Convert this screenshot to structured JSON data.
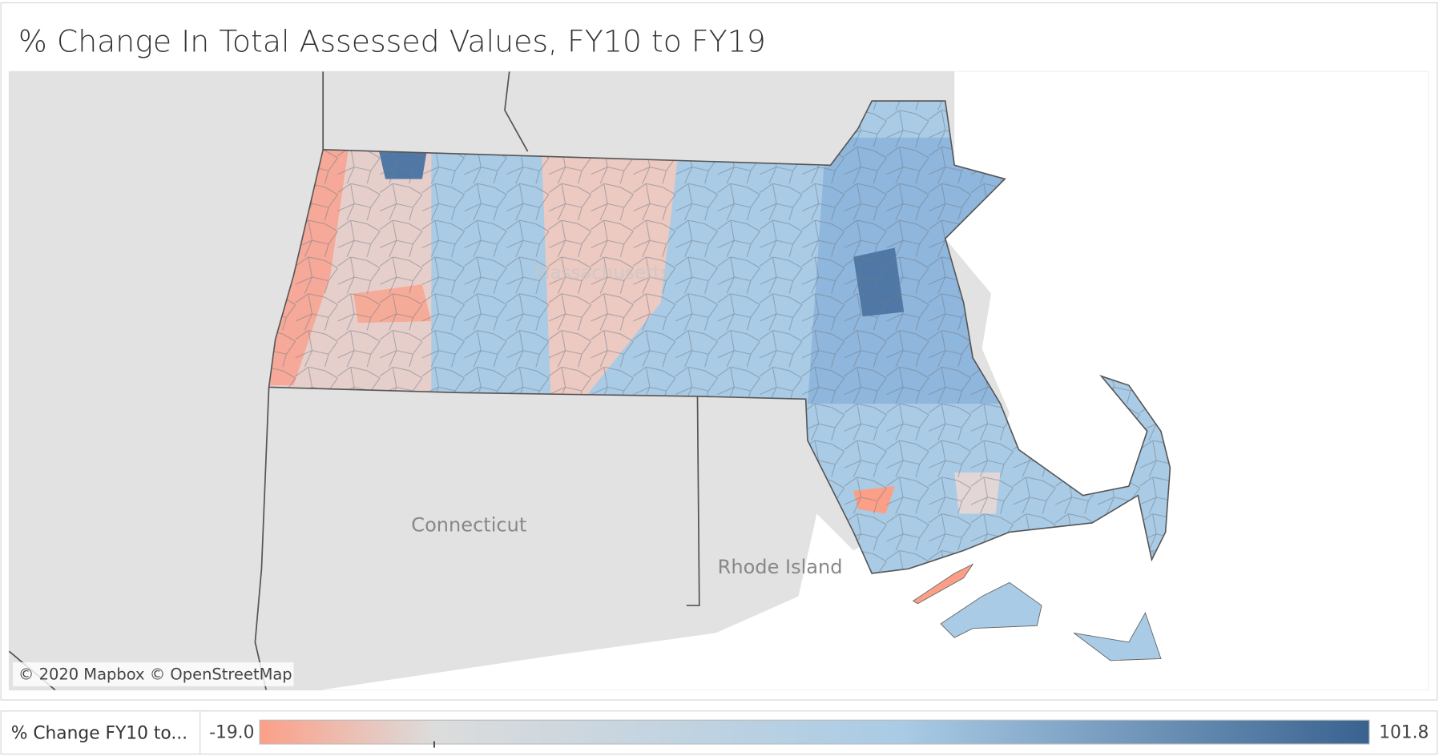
{
  "header": {
    "title": "% Change In Total Assessed Values, FY10 to FY19"
  },
  "map": {
    "labels": {
      "massachusetts": "Massachusetts",
      "connecticut": "Connecticut",
      "rhode_island": "Rhode Island"
    },
    "attribution": "© 2020 Mapbox © OpenStreetMap"
  },
  "legend": {
    "title": "% Change FY10 to...",
    "min": {
      "value": -19,
      "label": "-19.0"
    },
    "max": {
      "value": 101.8,
      "label": "101.8"
    },
    "colors": [
      "#fc9f87",
      "#dcdcdc",
      "#a9cbe5",
      "#39628f"
    ]
  }
}
